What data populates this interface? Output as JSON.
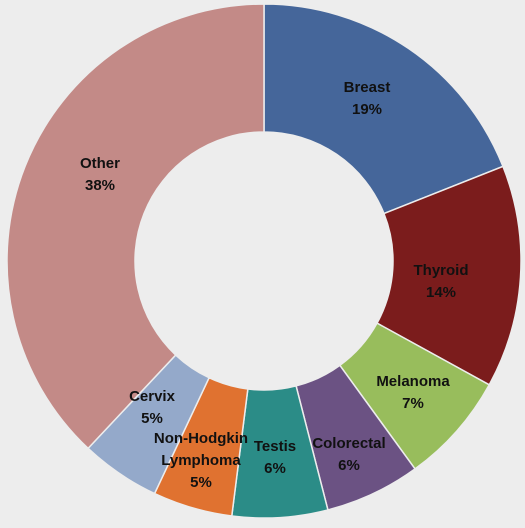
{
  "chart_data": {
    "type": "pie",
    "variant": "donut",
    "title": "",
    "slices": [
      {
        "category": "Breast",
        "value": 19,
        "label": "19%",
        "color": "#45669a"
      },
      {
        "category": "Thyroid",
        "value": 14,
        "label": "14%",
        "color": "#7b1c1c"
      },
      {
        "category": "Melanoma",
        "value": 7,
        "label": "7%",
        "color": "#98bd5c"
      },
      {
        "category": "Colorectal",
        "value": 6,
        "label": "6%",
        "color": "#6b5283"
      },
      {
        "category": "Testis",
        "value": 6,
        "label": "6%",
        "color": "#2b8c87"
      },
      {
        "category": "Non-Hodgkin Lymphoma",
        "value": 5,
        "label": "5%",
        "color": "#e07230"
      },
      {
        "category": "Cervix",
        "value": 5,
        "label": "5%",
        "color": "#94a9ca"
      },
      {
        "category": "Other",
        "value": 38,
        "label": "38%",
        "color": "#c38a87"
      }
    ],
    "background": "#ededed",
    "label_color": "#111111",
    "legend": "none"
  }
}
